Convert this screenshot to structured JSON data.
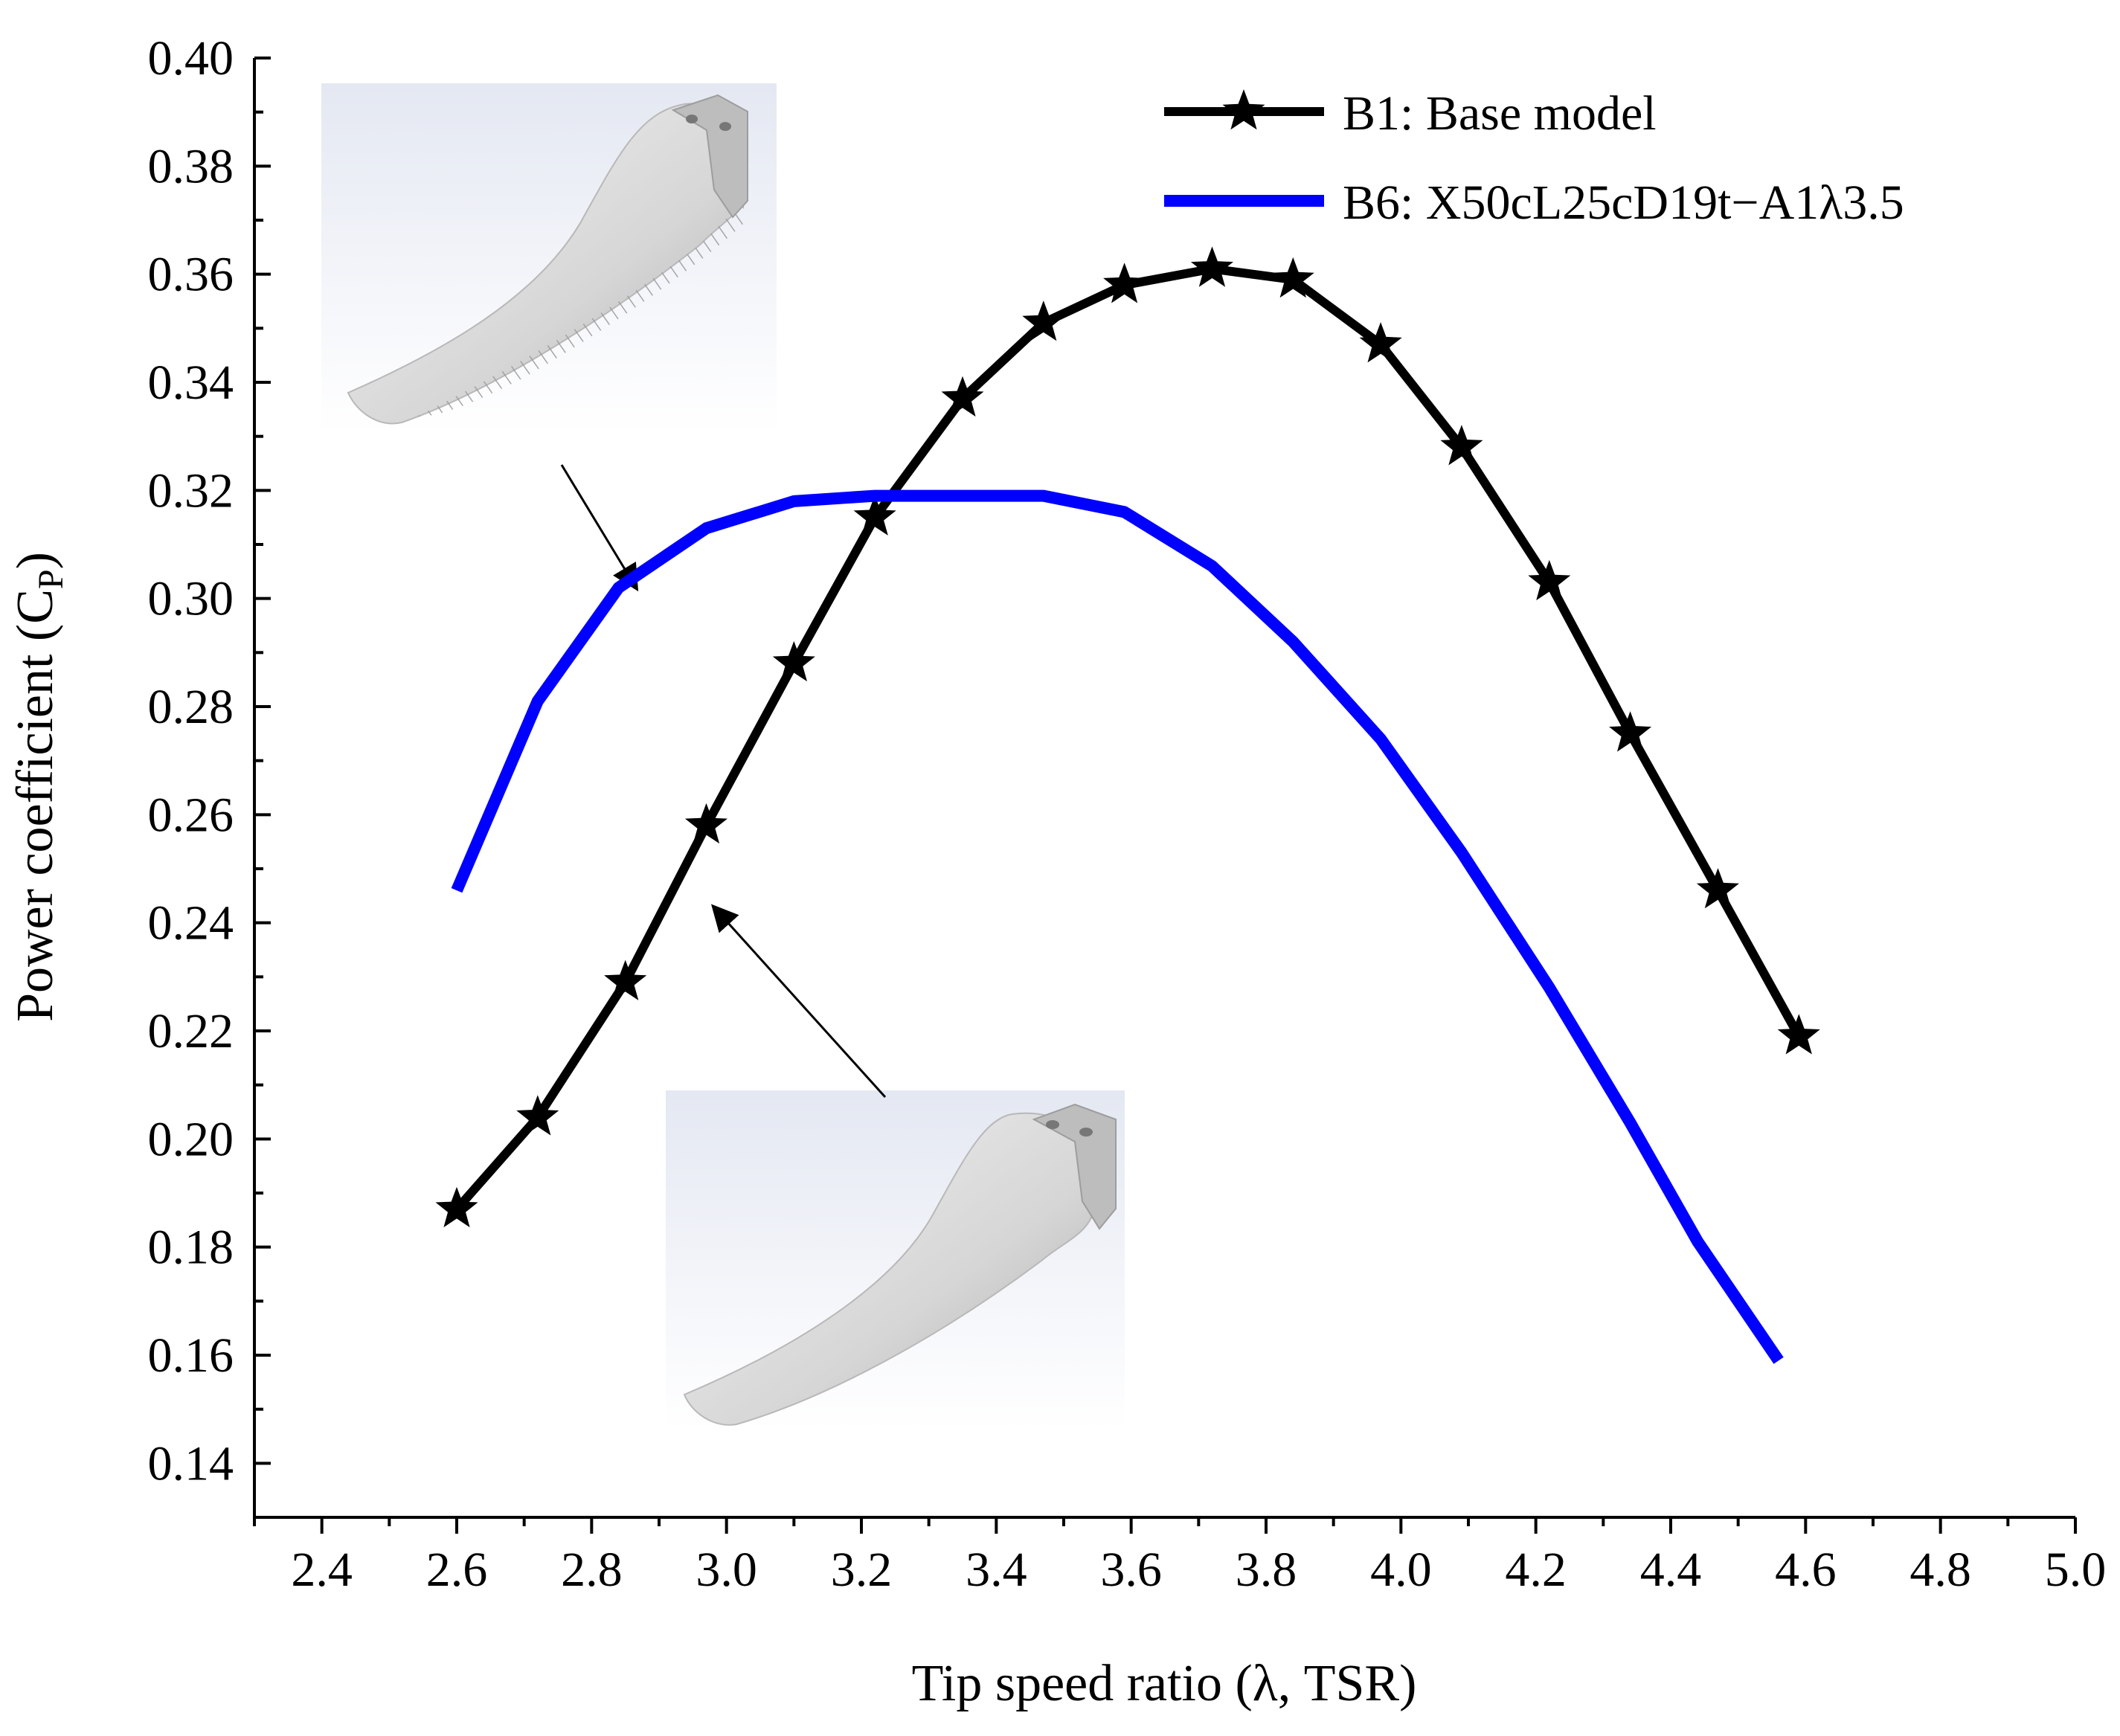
{
  "chart_data": {
    "type": "line",
    "xlabel": "Tip speed ratio (λ, TSR)",
    "ylabel": "Power coefficient (C",
    "ylabel_subscript": "P",
    "ylabel_close": ")",
    "xlim": [
      2.3,
      5.0
    ],
    "ylim": [
      0.13,
      0.4
    ],
    "x_ticks": [
      "2.4",
      "2.6",
      "2.8",
      "3.0",
      "3.2",
      "3.4",
      "3.6",
      "3.8",
      "4.0",
      "4.2",
      "4.4",
      "4.6",
      "4.8",
      "5.0"
    ],
    "y_ticks": [
      "0.14",
      "0.16",
      "0.18",
      "0.20",
      "0.22",
      "0.24",
      "0.26",
      "0.28",
      "0.30",
      "0.32",
      "0.34",
      "0.36",
      "0.38",
      "0.40"
    ],
    "legend_position": "top-right",
    "series": [
      {
        "name": "B1: Base model",
        "color": "#000000",
        "marker": "star",
        "x": [
          2.6,
          2.72,
          2.85,
          2.97,
          3.1,
          3.22,
          3.35,
          3.47,
          3.59,
          3.72,
          3.84,
          3.97,
          4.09,
          4.22,
          4.34,
          4.47,
          4.59
        ],
        "y": [
          0.187,
          0.204,
          0.229,
          0.258,
          0.288,
          0.315,
          0.337,
          0.351,
          0.358,
          0.361,
          0.359,
          0.347,
          0.328,
          0.303,
          0.275,
          0.246,
          0.219
        ]
      },
      {
        "name": "B6: X50cL25cD19t−A1λ3.5",
        "color": "#0000ff",
        "marker": "none",
        "x": [
          2.6,
          2.72,
          2.84,
          2.97,
          3.1,
          3.22,
          3.35,
          3.47,
          3.59,
          3.72,
          3.84,
          3.97,
          4.09,
          4.22,
          4.34,
          4.44,
          4.56
        ],
        "y": [
          0.246,
          0.281,
          0.302,
          0.313,
          0.318,
          0.319,
          0.319,
          0.319,
          0.316,
          0.306,
          0.292,
          0.274,
          0.253,
          0.228,
          0.203,
          0.181,
          0.159
        ]
      }
    ]
  },
  "insets": [
    {
      "name": "textured-blade-image",
      "description_icon": "blade-render-icon"
    },
    {
      "name": "smooth-blade-image",
      "description_icon": "blade-render-icon"
    }
  ]
}
